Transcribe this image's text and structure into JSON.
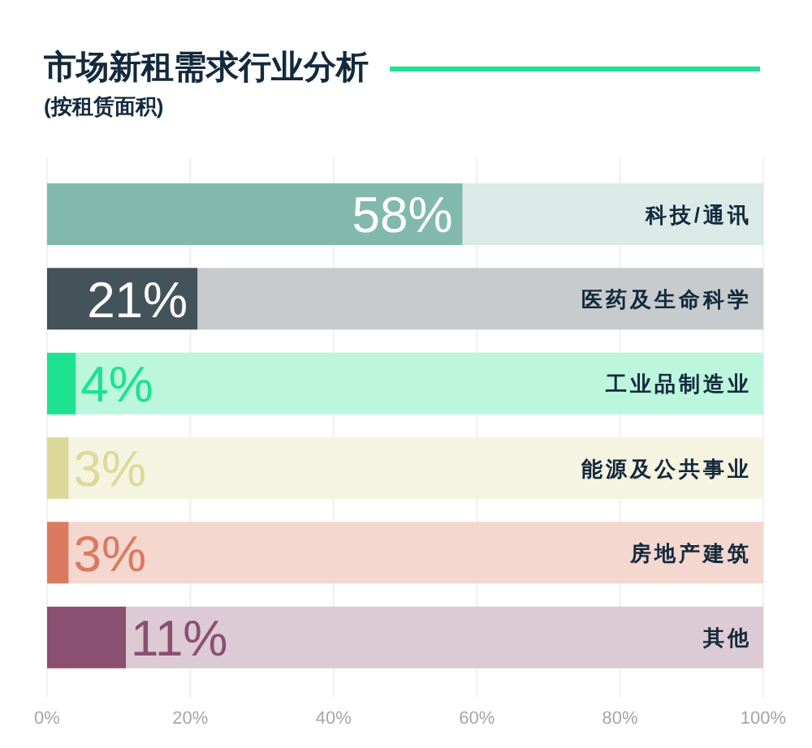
{
  "chart_data": {
    "type": "bar",
    "orientation": "horizontal",
    "title": "市场新租需求行业分析",
    "subtitle": "(按租赁面积)",
    "categories": [
      "科技/通讯",
      "医药及生命科学",
      "工业品制造业",
      "能源及公共事业",
      "房地产建筑",
      "其他"
    ],
    "values": [
      58,
      21,
      4,
      3,
      3,
      11
    ],
    "colors": [
      "#82b9ad",
      "#44535a",
      "#1de28f",
      "#dcd99b",
      "#da7b5f",
      "#8a4f71"
    ],
    "value_labels": [
      "58%",
      "21%",
      "4%",
      "3%",
      "3%",
      "11%"
    ],
    "xlim": [
      0,
      100
    ],
    "xticks": [
      {
        "value": 0,
        "label": "0%"
      },
      {
        "value": 20,
        "label": "20%"
      },
      {
        "value": 40,
        "label": "40%"
      },
      {
        "value": 60,
        "label": "60%"
      },
      {
        "value": 80,
        "label": "80%"
      },
      {
        "value": 100,
        "label": "100%"
      }
    ],
    "grid": "x"
  }
}
